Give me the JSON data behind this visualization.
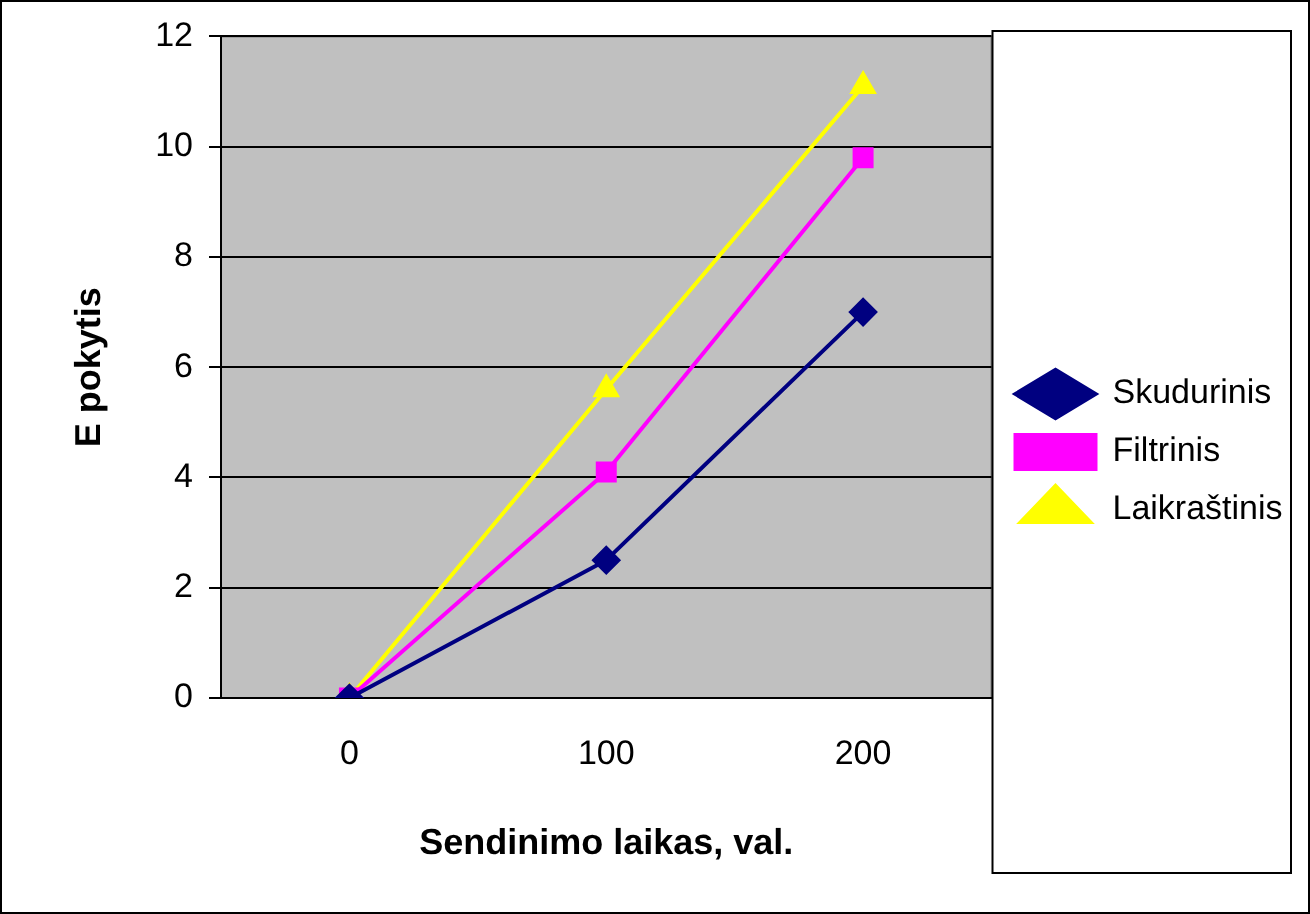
{
  "chart_data": {
    "type": "line",
    "xlabel": "Sendinimo laikas, val.",
    "ylabel": "E pokytis",
    "categories": [
      "0",
      "100",
      "200"
    ],
    "series": [
      {
        "name": "Skudurinis",
        "color": "#000080",
        "marker": "diamond",
        "values": [
          0,
          2.5,
          7
        ]
      },
      {
        "name": "Filtrinis",
        "color": "#ff00ff",
        "marker": "square",
        "values": [
          0,
          4.1,
          9.8
        ]
      },
      {
        "name": "Laikraštinis",
        "color": "#ffff00",
        "marker": "triangle",
        "values": [
          0,
          5.6,
          11.1
        ]
      }
    ],
    "ylim": [
      0,
      12
    ],
    "yticks": [
      0,
      2,
      4,
      6,
      8,
      10,
      12
    ],
    "grid": "y",
    "legend": "right",
    "line_style": "solid"
  }
}
